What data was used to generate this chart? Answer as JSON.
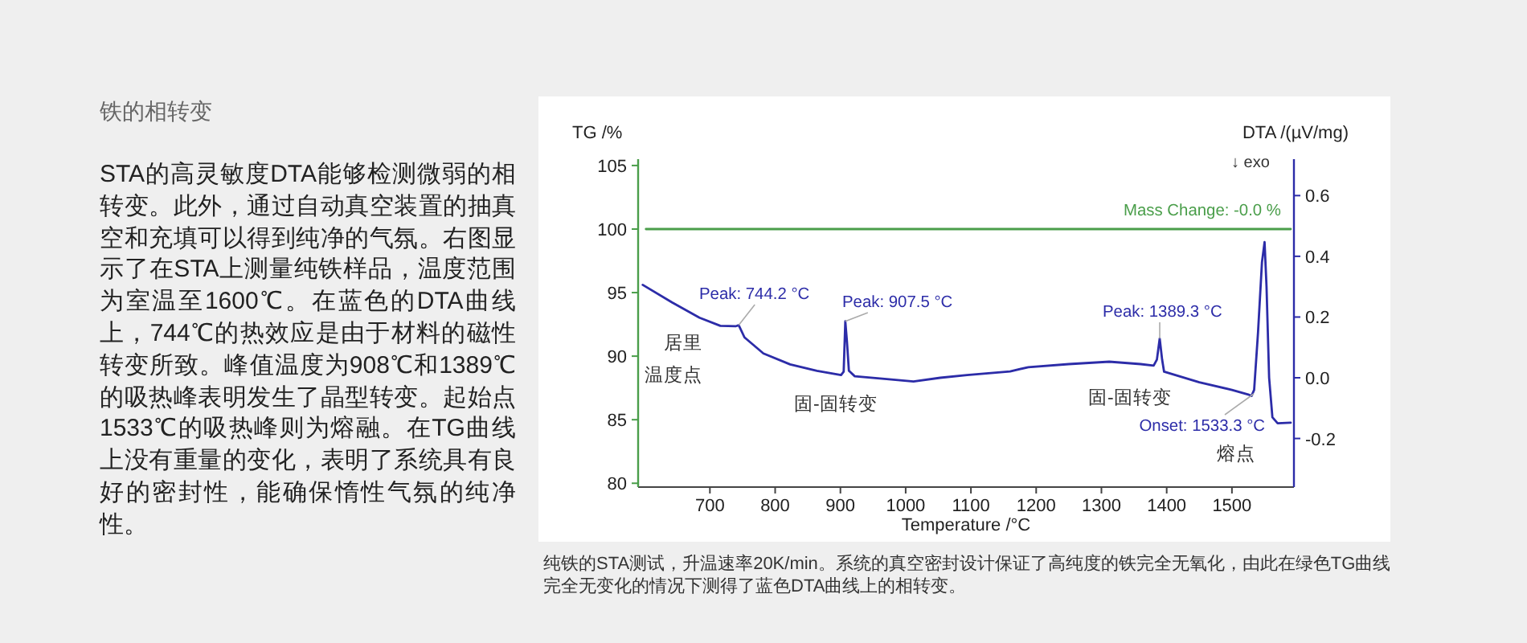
{
  "chart_data": {
    "type": "line",
    "title": "铁的相转变",
    "xlabel": "Temperature /°C",
    "ylabel": "TG /%",
    "y2label": "DTA /(µV/mg)",
    "xlim": [
      590,
      1595
    ],
    "xticks": [
      700,
      800,
      900,
      1000,
      1100,
      1200,
      1300,
      1400,
      1500
    ],
    "ylim": [
      79.7,
      105.5
    ],
    "yticks": [
      80,
      85,
      90,
      95,
      100,
      105
    ],
    "y2lim": [
      -0.36,
      0.72
    ],
    "y2ticks": [
      -0.2,
      {
        "value": 0,
        "label": "0.0"
      },
      0.2,
      0.4,
      0.6
    ],
    "series": [
      {
        "color": "#4a9e4a",
        "x": [
          602,
          1590
        ],
        "values": [
          100,
          100
        ]
      },
      {
        "axis": "y2",
        "color": "#2c2ca8",
        "x": [
          597,
          642,
          684,
          716,
          740,
          744.2,
          753,
          782,
          823,
          864,
          901,
          905,
          907.5,
          910,
          913,
          922,
          971,
          1012,
          1053,
          1094,
          1160,
          1188,
          1250,
          1312,
          1360,
          1380,
          1385,
          1389.3,
          1393,
          1396,
          1450,
          1500,
          1525,
          1530,
          1534,
          1540,
          1546,
          1550,
          1553,
          1557,
          1562,
          1570,
          1590
        ],
        "values": [
          0.306,
          0.248,
          0.198,
          0.171,
          0.17,
          0.173,
          0.133,
          0.08,
          0.044,
          0.023,
          0.009,
          0.02,
          0.186,
          0.12,
          0.023,
          0.005,
          -0.004,
          -0.012,
          0.0,
          0.009,
          0.021,
          0.035,
          0.045,
          0.053,
          0.045,
          0.04,
          0.06,
          0.129,
          0.06,
          0.02,
          -0.015,
          -0.04,
          -0.055,
          -0.06,
          -0.04,
          0.15,
          0.38,
          0.447,
          0.3,
          0.0,
          -0.13,
          -0.15,
          -0.148
        ]
      }
    ],
    "annotations": [
      "Peak: 744.2 °C",
      "Peak: 907.5 °C",
      "Peak: 1389.3 °C",
      "Onset: 1533.3 °C",
      {
        "text": "Mass Change: -0.0 %",
        "x": 1590,
        "y": 100
      },
      "↓ exo",
      "居里温度点",
      "固-固转变",
      "固-固转变",
      "熔点",
      "STA的高灵敏度DTA能够检测微弱的相转变。此外，通过自动真空装置的抽真空和充填可以得到纯净的气氛。右图显示了在STA上测量纯铁样品，温度范围为室温至1600℃。在蓝色的DTA曲线上，744℃的热效应是由于材料的磁性转变所致。峰值温度为908℃和1389℃的吸热峰表明发生了晶型转变。起始点1533℃的吸热峰则为熔融。在TG曲线上没有重量的变化，表明了系统具有良好的密封性，能确保惰性气氛的纯净性。",
      "纯铁的STA测试，升温速率20K/min。系统的真空密封设计保证了高纯度的铁完全无氧化，由此在绿色TG曲线完全无变化的情况下测得了蓝色DTA曲线上的相转变。"
    ]
  }
}
